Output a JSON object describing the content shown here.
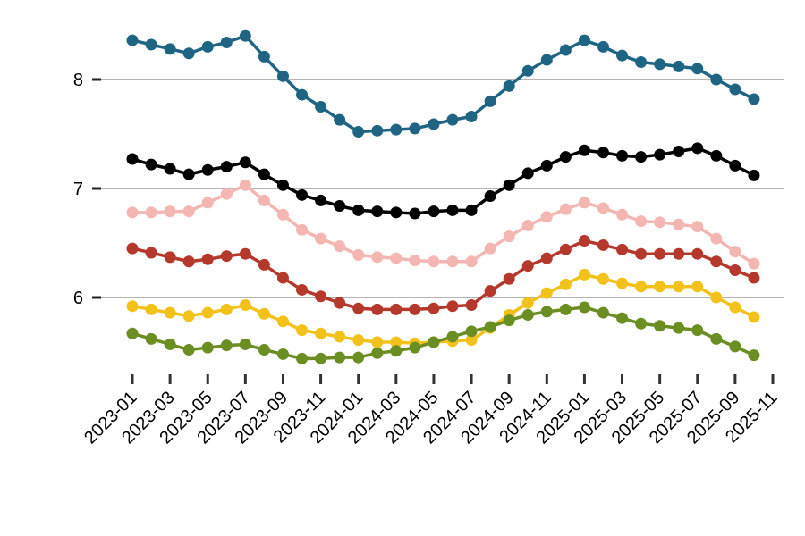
{
  "chart_data": {
    "type": "line",
    "x": [
      "2023-01",
      "2023-02",
      "2023-03",
      "2023-04",
      "2023-05",
      "2023-06",
      "2023-07",
      "2023-08",
      "2023-09",
      "2023-10",
      "2023-11",
      "2023-12",
      "2024-01",
      "2024-02",
      "2024-03",
      "2024-04",
      "2024-05",
      "2024-06",
      "2024-07",
      "2024-08",
      "2024-09",
      "2024-10",
      "2024-11",
      "2024-12",
      "2025-01",
      "2025-02",
      "2025-03",
      "2025-04",
      "2025-05",
      "2025-06",
      "2025-07",
      "2025-08",
      "2025-09",
      "2025-10"
    ],
    "series": [
      {
        "color": "#1f6583",
        "values": [
          8.36,
          8.32,
          8.28,
          8.24,
          8.3,
          8.34,
          8.4,
          8.21,
          8.03,
          7.86,
          7.75,
          7.63,
          7.52,
          7.53,
          7.54,
          7.55,
          7.59,
          7.63,
          7.66,
          7.8,
          7.94,
          8.08,
          8.18,
          8.27,
          8.36,
          8.3,
          8.22,
          8.16,
          8.14,
          8.12,
          8.1,
          8.0,
          7.91,
          7.82
        ]
      },
      {
        "color": "#000000",
        "values": [
          7.27,
          7.22,
          7.18,
          7.13,
          7.17,
          7.2,
          7.24,
          7.13,
          7.03,
          6.94,
          6.89,
          6.84,
          6.8,
          6.79,
          6.78,
          6.77,
          6.79,
          6.8,
          6.8,
          6.93,
          7.03,
          7.14,
          7.21,
          7.29,
          7.35,
          7.33,
          7.3,
          7.29,
          7.31,
          7.34,
          7.37,
          7.3,
          7.21,
          7.12
        ]
      },
      {
        "color": "#f4b6b0",
        "values": [
          6.78,
          6.78,
          6.79,
          6.79,
          6.87,
          6.95,
          7.03,
          6.89,
          6.76,
          6.62,
          6.54,
          6.47,
          6.39,
          6.37,
          6.36,
          6.34,
          6.33,
          6.33,
          6.33,
          6.45,
          6.56,
          6.66,
          6.74,
          6.81,
          6.87,
          6.82,
          6.76,
          6.7,
          6.69,
          6.67,
          6.65,
          6.54,
          6.42,
          6.31
        ]
      },
      {
        "color": "#b5382d",
        "values": [
          6.45,
          6.41,
          6.37,
          6.33,
          6.35,
          6.38,
          6.4,
          6.3,
          6.18,
          6.07,
          6.01,
          5.95,
          5.9,
          5.89,
          5.89,
          5.89,
          5.9,
          5.92,
          5.93,
          6.06,
          6.17,
          6.29,
          6.36,
          6.44,
          6.52,
          6.48,
          6.44,
          6.4,
          6.4,
          6.4,
          6.4,
          6.33,
          6.25,
          6.18
        ]
      },
      {
        "color": "#f2c21b",
        "values": [
          5.92,
          5.89,
          5.86,
          5.83,
          5.86,
          5.89,
          5.93,
          5.85,
          5.78,
          5.7,
          5.67,
          5.64,
          5.61,
          5.59,
          5.59,
          5.58,
          5.59,
          5.6,
          5.61,
          5.72,
          5.84,
          5.95,
          6.04,
          6.12,
          6.21,
          6.17,
          6.13,
          6.1,
          6.1,
          6.1,
          6.1,
          6.0,
          5.91,
          5.82
        ]
      },
      {
        "color": "#6b8e23",
        "values": [
          5.67,
          5.62,
          5.57,
          5.52,
          5.54,
          5.56,
          5.57,
          5.52,
          5.48,
          5.44,
          5.44,
          5.45,
          5.45,
          5.49,
          5.51,
          5.54,
          5.59,
          5.64,
          5.69,
          5.73,
          5.79,
          5.84,
          5.87,
          5.89,
          5.91,
          5.86,
          5.81,
          5.76,
          5.74,
          5.72,
          5.7,
          5.62,
          5.55,
          5.47
        ]
      }
    ],
    "xlim": [
      "2023-01",
      "2025-11"
    ],
    "xticks": [
      "2023-01",
      "2023-03",
      "2023-05",
      "2023-07",
      "2023-09",
      "2023-11",
      "2024-01",
      "2024-03",
      "2024-05",
      "2024-07",
      "2024-09",
      "2024-11",
      "2025-01",
      "2025-03",
      "2025-05",
      "2025-07",
      "2025-09",
      "2025-11"
    ],
    "ylim": [
      5.3,
      8.5
    ],
    "yticks": [
      6,
      7,
      8
    ],
    "grid": true
  }
}
